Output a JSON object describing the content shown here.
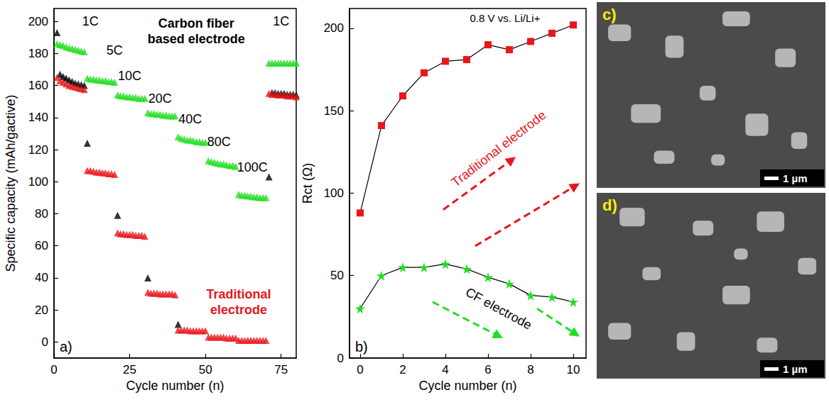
{
  "chart_data": [
    {
      "type": "scatter",
      "panel": "a)",
      "xlabel": "Cycle number (n)",
      "ylabel": "Specific capacity (mAh/gactive)",
      "xlim": [
        0,
        80
      ],
      "xticks": [
        0,
        25,
        50,
        75
      ],
      "ylim": [
        -10,
        208
      ],
      "yticks": [
        0,
        20,
        40,
        60,
        80,
        100,
        120,
        140,
        160,
        180,
        200
      ],
      "x": [
        1,
        2,
        3,
        4,
        5,
        6,
        7,
        8,
        9,
        10,
        11,
        12,
        13,
        14,
        15,
        16,
        17,
        18,
        19,
        20,
        21,
        22,
        23,
        24,
        25,
        26,
        27,
        28,
        29,
        30,
        31,
        32,
        33,
        34,
        35,
        36,
        37,
        38,
        39,
        40,
        41,
        42,
        43,
        44,
        45,
        46,
        47,
        48,
        49,
        50,
        51,
        52,
        53,
        54,
        55,
        56,
        57,
        58,
        59,
        60,
        61,
        62,
        63,
        64,
        65,
        66,
        67,
        68,
        69,
        70,
        71,
        72,
        73,
        74,
        75,
        76,
        77,
        78,
        79,
        80
      ],
      "series": [
        {
          "color": "#000000",
          "marker": "triangle",
          "values": [
            193,
            167,
            165.5,
            164.5,
            163.5,
            162.5,
            161.5,
            161,
            160.5,
            160,
            124,
            null,
            null,
            null,
            null,
            null,
            null,
            null,
            null,
            null,
            79,
            null,
            null,
            null,
            null,
            null,
            null,
            null,
            null,
            null,
            40,
            null,
            null,
            null,
            null,
            null,
            null,
            null,
            null,
            null,
            11,
            null,
            null,
            null,
            null,
            null,
            null,
            null,
            null,
            null,
            null,
            null,
            null,
            null,
            null,
            null,
            null,
            null,
            null,
            null,
            null,
            null,
            null,
            null,
            null,
            null,
            null,
            null,
            null,
            null,
            103,
            155.5,
            155.5,
            155,
            155,
            155,
            154.5,
            154.5,
            154.5,
            154
          ]
        },
        {
          "color": "#e8161b",
          "marker": "triangle",
          "values": [
            165,
            163,
            162,
            161,
            160,
            159.5,
            159,
            158.5,
            158,
            157.5,
            107,
            107,
            106.5,
            106,
            106,
            105.5,
            105.5,
            105,
            105,
            104.5,
            68,
            67.5,
            67.5,
            67,
            67,
            67,
            66.5,
            66.5,
            66.5,
            66,
            31,
            30.5,
            30.5,
            30.5,
            30,
            30,
            30,
            30,
            30,
            29.5,
            7.5,
            7.5,
            7.5,
            7.5,
            7,
            7,
            7,
            7,
            7,
            7,
            3,
            3,
            3,
            3,
            3,
            3,
            2.5,
            2.5,
            2.5,
            2.5,
            1,
            1,
            1,
            1,
            1,
            1,
            1,
            1,
            1,
            1,
            155,
            154.5,
            154.5,
            154,
            154,
            154,
            153.5,
            153.5,
            153.5,
            153
          ]
        },
        {
          "color": "#22dd22",
          "marker": "triangle",
          "values": [
            186,
            185.5,
            185,
            184,
            183.5,
            183,
            182.5,
            182,
            181.5,
            181,
            164.5,
            164,
            164,
            163.5,
            163.5,
            163,
            163,
            162.5,
            162.5,
            162,
            154,
            153.5,
            153.5,
            153,
            153,
            152.5,
            152.5,
            152,
            152,
            152,
            143,
            142.5,
            142.5,
            142,
            142,
            141.5,
            141.5,
            141,
            141,
            141,
            128,
            127,
            126.5,
            126,
            126,
            125.5,
            125,
            125,
            124.5,
            124.5,
            113,
            112.5,
            112,
            111.5,
            111,
            111,
            110.5,
            110,
            110,
            109.5,
            92,
            91.5,
            91.5,
            91,
            91,
            90.5,
            90.5,
            90,
            90,
            90,
            174,
            174,
            174,
            174,
            174,
            174,
            174,
            174,
            174,
            174
          ]
        }
      ],
      "annotations": [
        {
          "text": "1C",
          "x": 12,
          "y": 200,
          "color": "#000000"
        },
        {
          "text": "5C",
          "x": 20,
          "y": 182,
          "color": "#000000"
        },
        {
          "text": "10C",
          "x": 25,
          "y": 166,
          "color": "#000000"
        },
        {
          "text": "20C",
          "x": 35,
          "y": 152,
          "color": "#000000"
        },
        {
          "text": "40C",
          "x": 45,
          "y": 139,
          "color": "#000000"
        },
        {
          "text": "80C",
          "x": 54.5,
          "y": 125,
          "color": "#000000"
        },
        {
          "text": "100C",
          "x": 65.5,
          "y": 109,
          "color": "#000000"
        },
        {
          "text": "1C",
          "x": 75,
          "y": 200,
          "color": "#000000"
        },
        {
          "text": "Carbon fiber based electrode",
          "x": 47,
          "y": 194,
          "color": "#000000"
        },
        {
          "text": "Traditional electrode",
          "x": 61,
          "y": 25,
          "color": "#e8161b"
        }
      ]
    },
    {
      "type": "line",
      "panel": "b)",
      "xlabel": "Cycle number (n)",
      "ylabel": "Rct (Ω)",
      "xlim": [
        -0.5,
        10.6
      ],
      "xticks": [
        0,
        2,
        4,
        6,
        8,
        10
      ],
      "ylim": [
        0,
        212
      ],
      "yticks": [
        0,
        50,
        100,
        150,
        200
      ],
      "x": [
        0,
        1,
        2,
        3,
        4,
        5,
        6,
        7,
        8,
        9,
        10
      ],
      "series": [
        {
          "color": "#e8161b",
          "marker": "square",
          "values": [
            88,
            141,
            159,
            173,
            180,
            181,
            190,
            187,
            192,
            197,
            202
          ]
        },
        {
          "color": "#22dd22",
          "marker": "star",
          "values": [
            30,
            50,
            55,
            55,
            57,
            54,
            49,
            45,
            38,
            37,
            34
          ]
        }
      ],
      "annotations": [
        {
          "text": "0.8 V vs. Li/Li+",
          "x": 6.8,
          "y": 206,
          "color": "#000000"
        },
        {
          "text": "Traditional electrode",
          "x": 6.5,
          "y": 127,
          "color": "#e8161b"
        },
        {
          "text": "CF electrode",
          "x": 6.5,
          "y": 30,
          "color": "#000000"
        }
      ]
    }
  ],
  "images": [
    {
      "panel": "c)",
      "scale_bar": "1 µm"
    },
    {
      "panel": "d)",
      "scale_bar": "1 µm"
    }
  ]
}
